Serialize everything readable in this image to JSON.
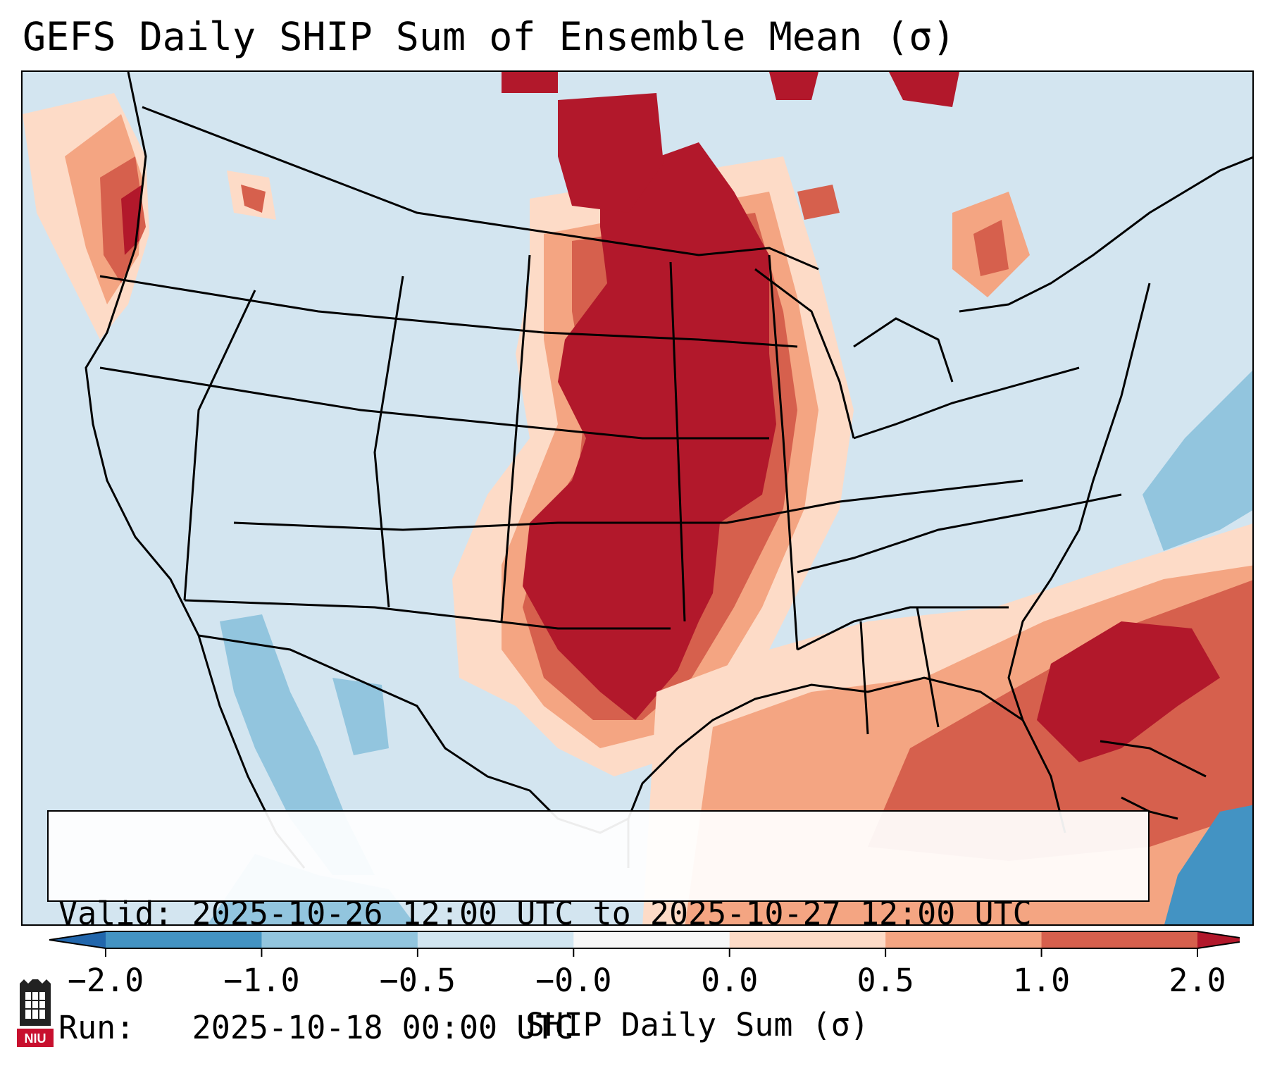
{
  "title": "GEFS Daily SHIP Sum of Ensemble Mean (σ)",
  "info": {
    "valid_label": "Valid:",
    "valid_value": "2025-10-26 12:00 UTC to 2025-10-27 12:00 UTC",
    "run_label": "Run:",
    "run_value": "2025-10-18 00:00 UTC"
  },
  "colorbar": {
    "label": "SHIP Daily Sum (σ)",
    "ticks": [
      "−2.0",
      "−1.0",
      "−0.5",
      "−0.0",
      "0.0",
      "0.5",
      "1.0",
      "2.0"
    ],
    "colors": [
      "#4393c3",
      "#92c5de",
      "#d1e5f0",
      "#ffffff",
      "#fddbc7",
      "#f4a582",
      "#d6604d",
      "#b2182b"
    ],
    "extend": "both"
  },
  "map": {
    "projection": "Lambert Conformal, CONUS",
    "field": "SHIP daily sum, ensemble mean",
    "background_color": "#d3e5f0",
    "max_anomaly_region": "Central Plains (Dakotas to Texas) and western Atlantic off Florida"
  },
  "logo": {
    "text": "NIU"
  }
}
